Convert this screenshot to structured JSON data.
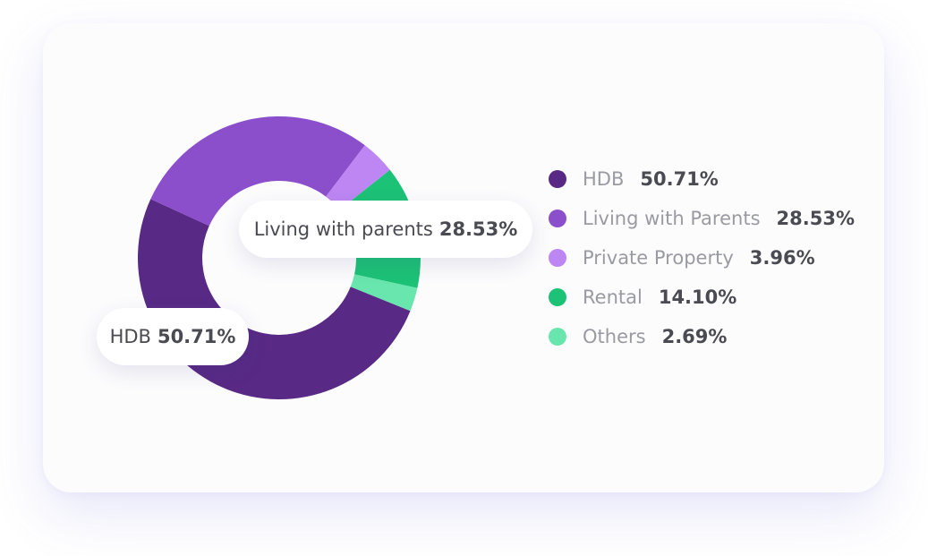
{
  "chart_data": {
    "type": "pie",
    "style": "donut",
    "categories": [
      "HDB",
      "Living with Parents",
      "Private Property",
      "Rental",
      "Others"
    ],
    "values": [
      50.71,
      28.53,
      3.96,
      14.1,
      2.69
    ],
    "display_values": [
      "50.71%",
      "28.53%",
      "3.96%",
      "14.10%",
      "2.69%"
    ],
    "colors": [
      "#582a86",
      "#8c4fcc",
      "#bd86f2",
      "#1cc276",
      "#68e6ad"
    ],
    "legend_position": "right",
    "callouts": [
      {
        "label": "HDB",
        "value": "50.71%"
      },
      {
        "label": "Living with parents",
        "value": "28.53%"
      }
    ]
  }
}
